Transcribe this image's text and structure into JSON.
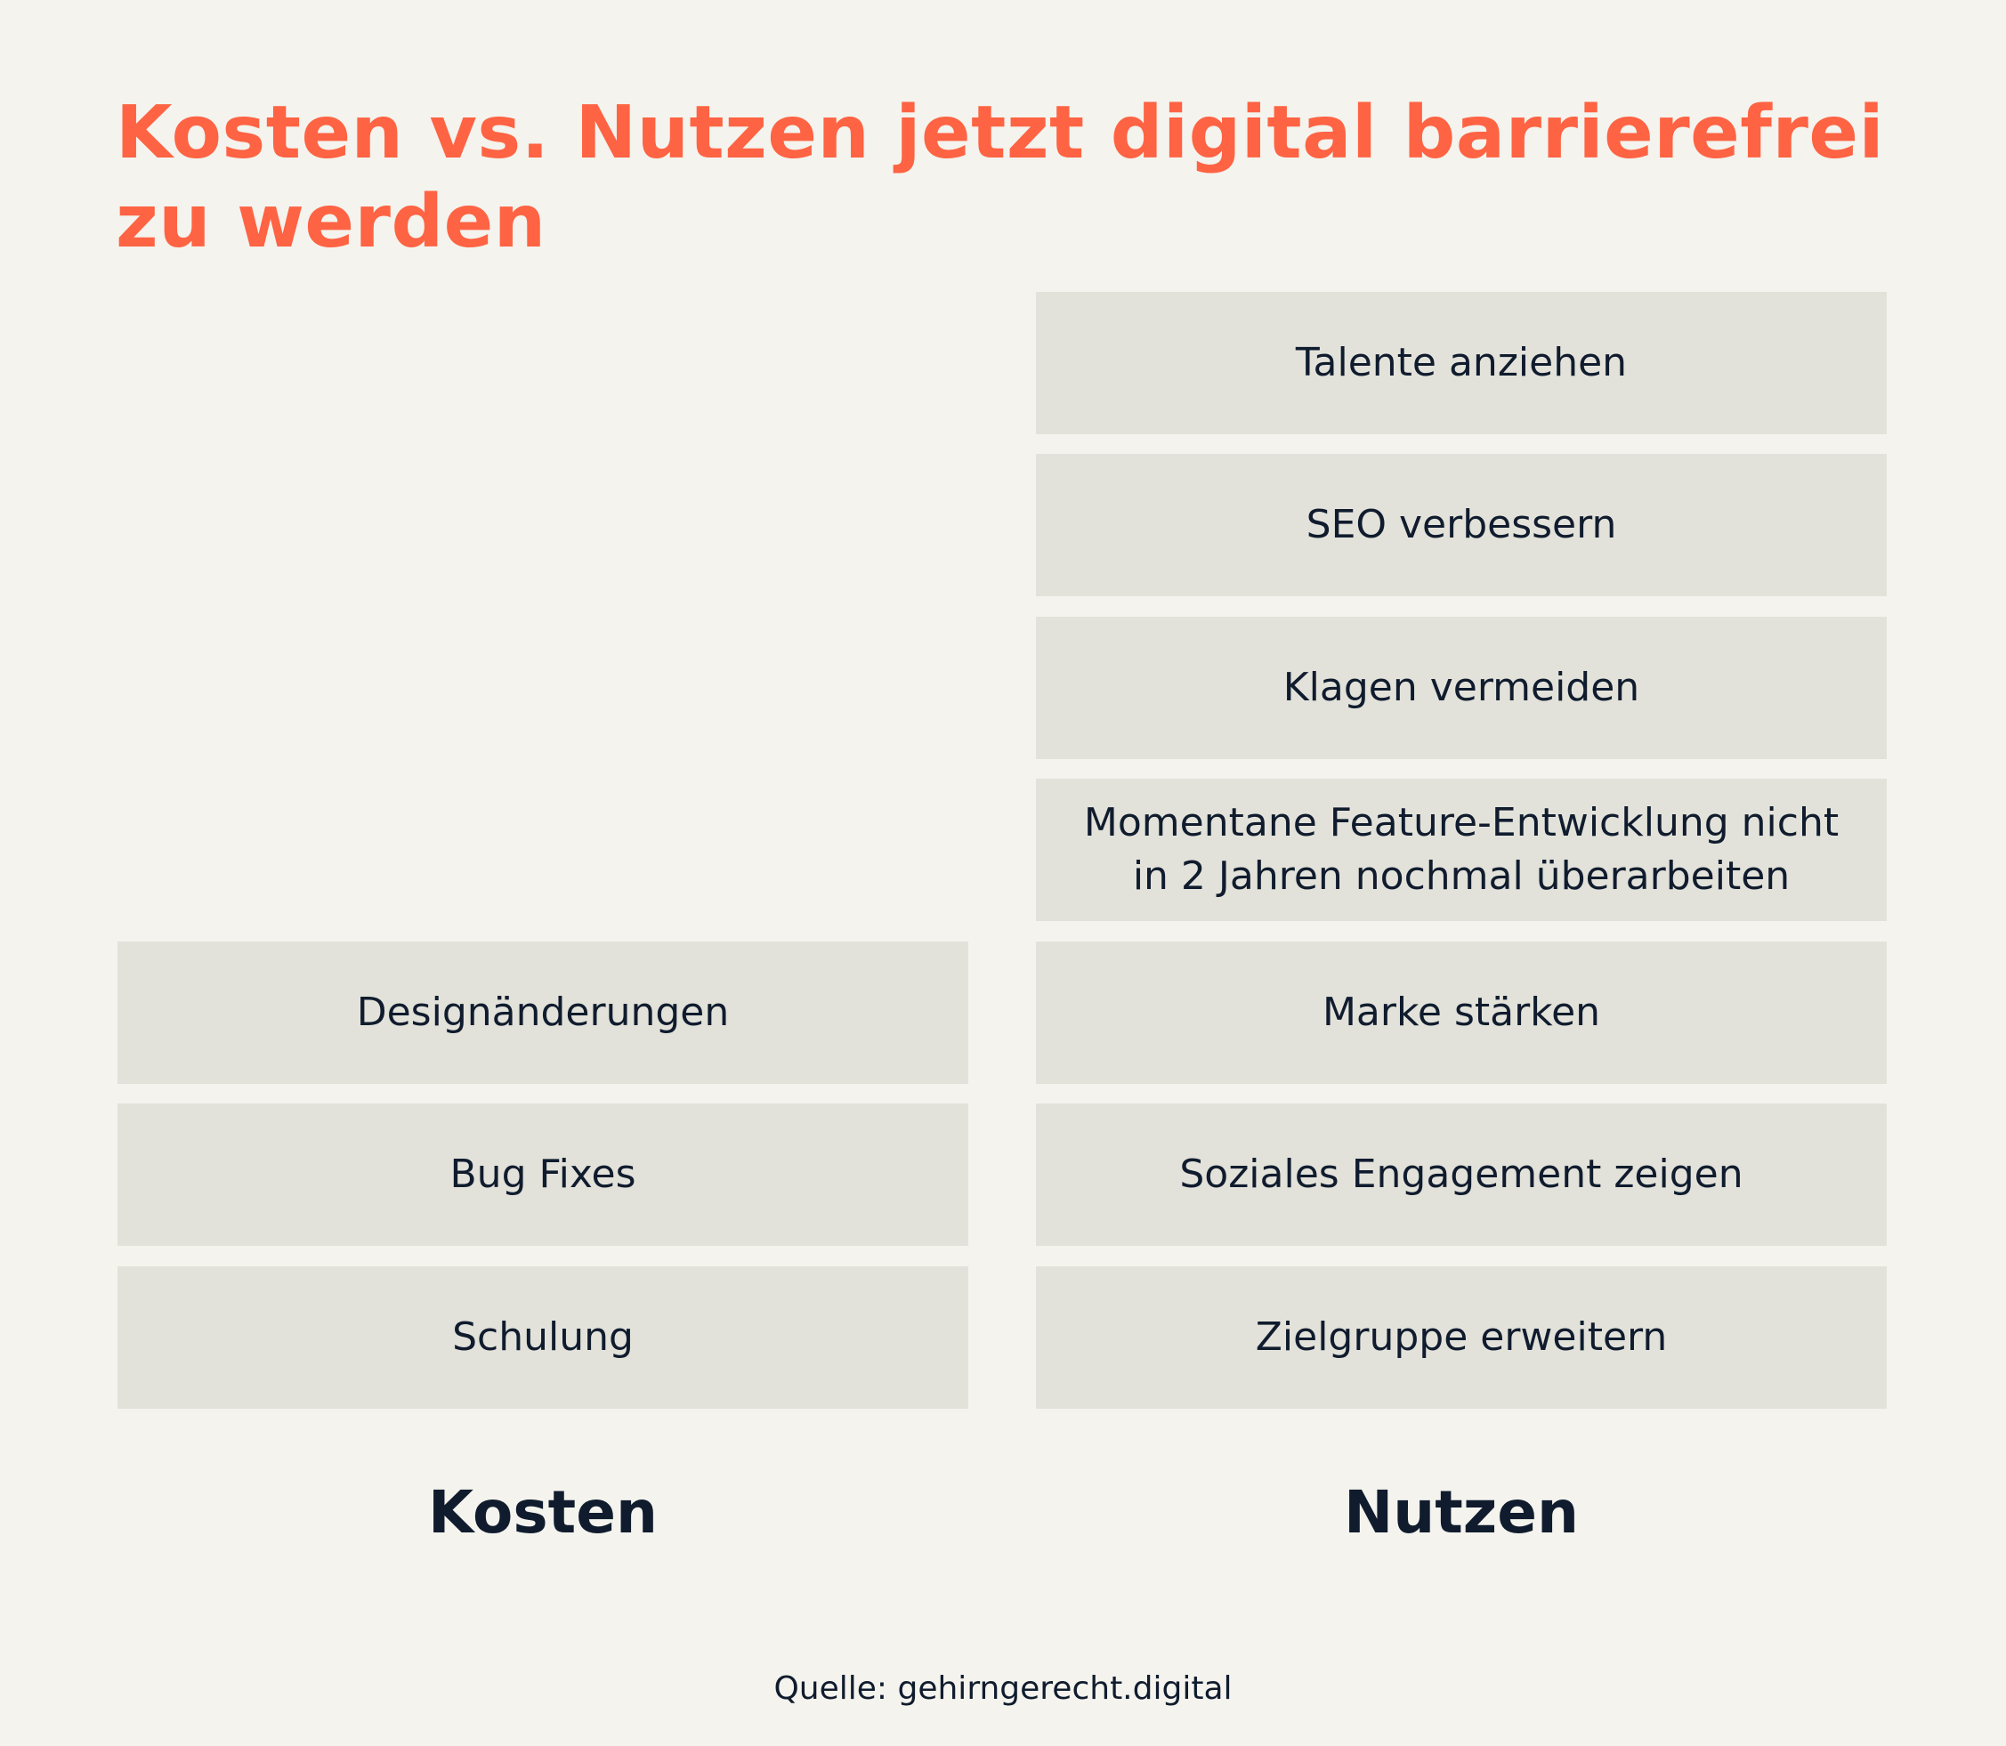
{
  "title": "Kosten vs. Nutzen jetzt digital barrierefrei zu werden",
  "kosten": {
    "label": "Kosten",
    "items": [
      "Designänderungen",
      "Bug Fixes",
      "Schulung"
    ]
  },
  "nutzen": {
    "label": "Nutzen",
    "items": [
      "Talente anziehen",
      "SEO verbessern",
      "Klagen vermeiden",
      "Momentane Feature-Entwicklung nicht in 2 Jahren nochmal überarbeiten",
      "Marke stärken",
      "Soziales Engagement zeigen",
      "Zielgruppe erweitern"
    ]
  },
  "source": "Quelle: gehirngerecht.digital",
  "colors": {
    "background": "#f4f3ed",
    "title": "#fe6343",
    "box": "#e3e2da",
    "text": "#101c2e"
  }
}
